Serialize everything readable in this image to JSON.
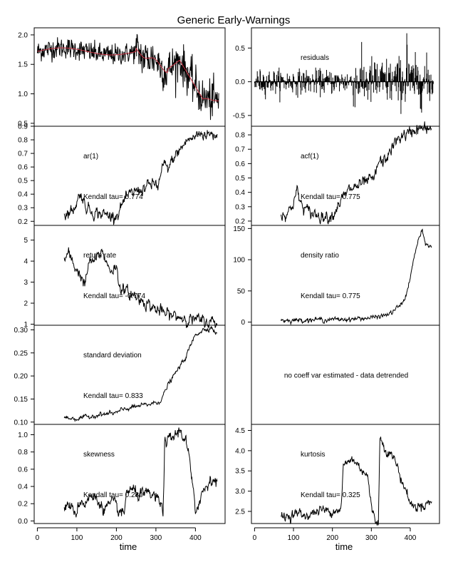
{
  "title": "Generic Early-Warnings",
  "colors": {
    "line": "#000000",
    "smooth": "#cc3344",
    "frame": "#000000"
  },
  "chart_data": [
    {
      "id": "ts",
      "type": "line",
      "xlim": [
        -8,
        475
      ],
      "ylim": [
        0.45,
        2.12
      ],
      "yticks": [
        "0.5",
        "1.0",
        "1.5",
        "2.0"
      ],
      "label": "",
      "tau": "",
      "series": [
        {
          "name": "",
          "kind": "raw"
        },
        {
          "name": "",
          "kind": "smooth"
        }
      ]
    },
    {
      "id": "residuals",
      "type": "bar",
      "xlim": [
        -8,
        475
      ],
      "ylim": [
        -0.66,
        0.8
      ],
      "yticks": [
        "-0.5",
        "0.0",
        "0.5"
      ],
      "label": "residuals",
      "tau": ""
    },
    {
      "id": "ar1",
      "type": "line",
      "xlim": [
        -8,
        475
      ],
      "ylim": [
        0.17,
        0.9
      ],
      "yticks": [
        "0.2",
        "0.3",
        "0.4",
        "0.5",
        "0.6",
        "0.7",
        "0.8",
        "0.9"
      ],
      "label": "ar(1)",
      "tau": "Kendall tau= 0.774"
    },
    {
      "id": "acf1",
      "type": "line",
      "xlim": [
        -8,
        475
      ],
      "ylim": [
        0.17,
        0.86
      ],
      "yticks": [
        "0.2",
        "0.3",
        "0.4",
        "0.5",
        "0.6",
        "0.7",
        "0.8"
      ],
      "label": "acf(1)",
      "tau": "Kendall tau= 0.775"
    },
    {
      "id": "returnrate",
      "type": "line",
      "xlim": [
        -8,
        475
      ],
      "ylim": [
        0.95,
        5.7
      ],
      "yticks": [
        "1",
        "2",
        "3",
        "4",
        "5"
      ],
      "label": "return rate",
      "tau": "Kendall tau= -0.774"
    },
    {
      "id": "densityratio",
      "type": "line",
      "xlim": [
        -8,
        475
      ],
      "ylim": [
        -5,
        155
      ],
      "yticks": [
        "0",
        "50",
        "100",
        "150"
      ],
      "label": "density ratio",
      "tau": "Kendall tau= 0.775"
    },
    {
      "id": "sd",
      "type": "line",
      "xlim": [
        -8,
        475
      ],
      "ylim": [
        0.095,
        0.31
      ],
      "yticks": [
        "0.10",
        "0.15",
        "0.20",
        "0.25",
        "0.30"
      ],
      "label": "standard deviation",
      "tau": "Kendall tau= 0.833"
    },
    {
      "id": "coeffvar",
      "type": "text",
      "label": "no coeff var estimated - data detrended",
      "tau": ""
    },
    {
      "id": "skew",
      "type": "line",
      "xlim": [
        -8,
        475
      ],
      "ylim": [
        -0.03,
        1.12
      ],
      "yticks": [
        "0.0",
        "0.2",
        "0.4",
        "0.6",
        "0.8",
        "1.0"
      ],
      "label": "skewness",
      "tau": "Kendall tau= 0.289"
    },
    {
      "id": "kurt",
      "type": "line",
      "xlim": [
        -8,
        475
      ],
      "ylim": [
        2.2,
        4.65
      ],
      "yticks": [
        "2.5",
        "3.0",
        "3.5",
        "4.0",
        "4.5"
      ],
      "label": "kurtosis",
      "tau": "Kendall tau= 0.325"
    }
  ],
  "xaxis": {
    "ticks": [
      "0",
      "100",
      "200",
      "300",
      "400"
    ],
    "label": "time"
  },
  "seeds": {
    "ts": {
      "n": 460
    },
    "ind": {
      "ar1": {
        "x": [
          68,
          90,
          100,
          110,
          120,
          140,
          170,
          190,
          205,
          215,
          230,
          245,
          260,
          280,
          300,
          305,
          320,
          330,
          345,
          360,
          380,
          395,
          410,
          430,
          455
        ],
        "y": [
          0.25,
          0.28,
          0.35,
          0.41,
          0.32,
          0.27,
          0.25,
          0.24,
          0.26,
          0.33,
          0.38,
          0.42,
          0.43,
          0.46,
          0.48,
          0.45,
          0.62,
          0.58,
          0.67,
          0.72,
          0.8,
          0.81,
          0.85,
          0.84,
          0.84
        ],
        "noise": 0.018
      },
      "acf1": {
        "x": [
          68,
          90,
          100,
          110,
          120,
          140,
          170,
          190,
          205,
          215,
          230,
          245,
          260,
          280,
          300,
          305,
          320,
          330,
          345,
          360,
          380,
          395,
          410,
          430,
          455
        ],
        "y": [
          0.24,
          0.27,
          0.34,
          0.41,
          0.31,
          0.26,
          0.24,
          0.23,
          0.26,
          0.32,
          0.37,
          0.42,
          0.44,
          0.46,
          0.49,
          0.47,
          0.62,
          0.6,
          0.67,
          0.74,
          0.8,
          0.8,
          0.84,
          0.84,
          0.84
        ],
        "noise": 0.018
      },
      "returnrate": {
        "x": [
          68,
          80,
          90,
          100,
          110,
          120,
          130,
          150,
          165,
          175,
          185,
          200,
          205,
          215,
          230,
          250,
          270,
          300,
          330,
          360,
          400,
          430,
          455
        ],
        "y": [
          4.1,
          4.3,
          3.9,
          3.6,
          3.3,
          2.8,
          3.9,
          4.1,
          4.5,
          3.9,
          3.6,
          3.7,
          3.1,
          2.6,
          2.5,
          2.3,
          2.1,
          1.7,
          1.45,
          1.35,
          1.2,
          1.12,
          1.1
        ],
        "noise": 0.12
      },
      "densityratio": {
        "x": [
          68,
          100,
          150,
          200,
          250,
          300,
          330,
          350,
          370,
          380,
          390,
          400,
          410,
          420,
          430,
          440,
          455
        ],
        "y": [
          3,
          3,
          4,
          4,
          5,
          7,
          10,
          14,
          25,
          30,
          45,
          70,
          105,
          130,
          145,
          125,
          120
        ],
        "noise": 1.5
      },
      "sd": {
        "x": [
          68,
          100,
          150,
          200,
          220,
          240,
          260,
          290,
          310,
          320,
          330,
          345,
          360,
          375,
          390,
          400,
          410,
          420,
          440,
          455
        ],
        "y": [
          0.11,
          0.107,
          0.115,
          0.12,
          0.128,
          0.132,
          0.135,
          0.14,
          0.145,
          0.16,
          0.18,
          0.2,
          0.22,
          0.24,
          0.27,
          0.29,
          0.295,
          0.3,
          0.305,
          0.29
        ],
        "noise": 0.002
      },
      "skew": {
        "x": [
          68,
          80,
          90,
          100,
          110,
          120,
          130,
          150,
          170,
          190,
          210,
          220,
          225,
          240,
          260,
          280,
          300,
          310,
          318,
          322,
          340,
          360,
          375,
          385,
          395,
          400,
          405,
          420,
          440,
          455
        ],
        "y": [
          0.15,
          0.2,
          0.1,
          0.12,
          0.25,
          0.2,
          0.28,
          0.25,
          0.15,
          0.2,
          0.1,
          0.05,
          0.35,
          0.35,
          0.3,
          0.3,
          0.28,
          0.2,
          0.1,
          0.9,
          0.95,
          1.05,
          0.95,
          0.7,
          0.3,
          0.05,
          0.2,
          0.35,
          0.5,
          0.45
        ],
        "noise": 0.03
      },
      "kurt": {
        "x": [
          68,
          90,
          110,
          130,
          150,
          170,
          190,
          210,
          222,
          228,
          250,
          270,
          290,
          300,
          310,
          318,
          322,
          340,
          360,
          380,
          390,
          400,
          410,
          430,
          455
        ],
        "y": [
          2.35,
          2.4,
          2.45,
          2.4,
          2.45,
          2.55,
          2.5,
          2.55,
          2.55,
          3.6,
          3.8,
          3.6,
          3.4,
          2.6,
          2.3,
          2.25,
          4.3,
          4.0,
          3.8,
          3.2,
          3.0,
          2.7,
          2.6,
          2.65,
          2.75
        ],
        "noise": 0.05
      }
    }
  }
}
